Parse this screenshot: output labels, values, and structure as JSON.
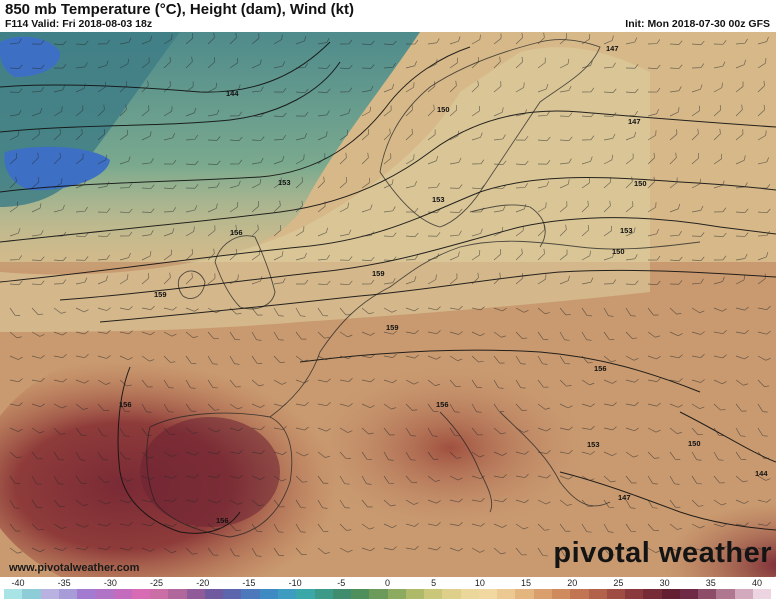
{
  "header": {
    "title": "850 mb Temperature (°C), Height (dam), Wind (kt)",
    "valid": "F114 Valid: Fri 2018-08-03 18z",
    "init": "Init: Mon 2018-07-30 00z GFS"
  },
  "watermark": {
    "site": "www.pivotalweather.com",
    "brand": "pivotal weather"
  },
  "contour_labels": [
    "144",
    "147",
    "147",
    "150",
    "150",
    "150",
    "153",
    "153",
    "153",
    "156",
    "159",
    "159",
    "159",
    "156",
    "156",
    "156",
    "153",
    "150",
    "147",
    "144",
    "156"
  ],
  "colorbar": {
    "ticks": [
      "-40",
      "-35",
      "-30",
      "-25",
      "-20",
      "-15",
      "-10",
      "-5",
      "0",
      "5",
      "10",
      "15",
      "20",
      "25",
      "30",
      "35",
      "40"
    ],
    "colors": [
      "#a8e4e6",
      "#8ecdd8",
      "#b9b1e0",
      "#a79bd8",
      "#a27bd0",
      "#b173c6",
      "#c56bbd",
      "#d86cb4",
      "#cc6ea6",
      "#b0679c",
      "#8f5b98",
      "#6f5aa0",
      "#5c66ad",
      "#4d78bb",
      "#3e8ac2",
      "#3d9cc0",
      "#3aa7a8",
      "#3c9a88",
      "#3f8d6e",
      "#4f8f5c",
      "#6b9a5a",
      "#8caa60",
      "#aeba6a",
      "#cac77a",
      "#ded08a",
      "#ecd79a",
      "#f1d8a0",
      "#ecc892",
      "#e3b680",
      "#d9a06e",
      "#cf8a5e",
      "#c27552",
      "#b2614a",
      "#9f4d43",
      "#8a3a3c",
      "#762b37",
      "#651f33",
      "#6f2a46",
      "#8d4c67",
      "#b07890",
      "#d3a9bd",
      "#ecd4e0"
    ]
  }
}
